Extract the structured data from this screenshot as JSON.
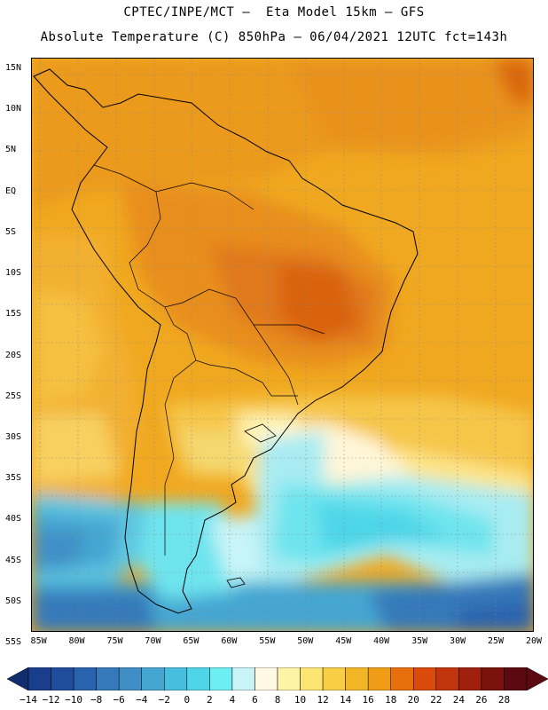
{
  "header": {
    "line1": "CPTEC/INPE/MCT –  Eta Model 15km – GFS",
    "line2": "Absolute Temperature (C) 850hPa – 06/04/2021 12UTC fct=143h"
  },
  "map": {
    "lat_labels": [
      "15N",
      "10N",
      "5N",
      "EQ",
      "5S",
      "10S",
      "15S",
      "20S",
      "25S",
      "30S",
      "35S",
      "40S",
      "45S",
      "50S",
      "55S"
    ],
    "lon_labels": [
      "85W",
      "80W",
      "75W",
      "70W",
      "65W",
      "60W",
      "55W",
      "50W",
      "45W",
      "40W",
      "35W",
      "30W",
      "25W",
      "20W"
    ],
    "lat_range": [
      15,
      -55
    ],
    "lon_range": [
      -85,
      -20
    ]
  },
  "colorbar": {
    "labels": [
      "-14",
      "-12",
      "-10",
      "-8",
      "-6",
      "-4",
      "-2",
      "0",
      "2",
      "4",
      "6",
      "8",
      "10",
      "12",
      "14",
      "16",
      "18",
      "20",
      "22",
      "24",
      "26",
      "28"
    ],
    "colors": [
      "#1a3e8c",
      "#1f4c9c",
      "#2a63ad",
      "#3679ba",
      "#3f8fc6",
      "#45a6d2",
      "#47bedd",
      "#4ed6e8",
      "#6ceef2",
      "#c8f4f8",
      "#fff9e3",
      "#fff3a8",
      "#fde574",
      "#f8cf44",
      "#f2b527",
      "#f19c16",
      "#e96f0d",
      "#d94a0b",
      "#c0350d",
      "#9f200c",
      "#7a120b",
      "#5a0a10"
    ]
  }
}
